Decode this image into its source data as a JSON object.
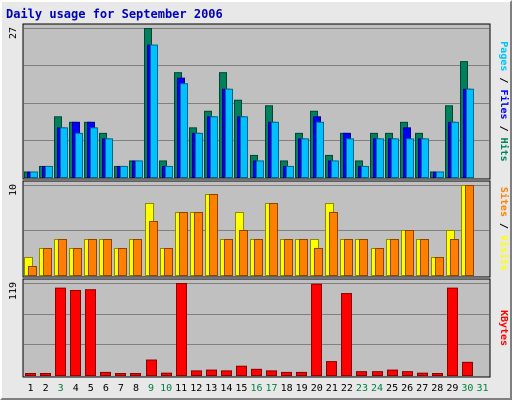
{
  "chart_data": {
    "type": "bar",
    "title": "Daily usage for September 2006",
    "categories": [
      "1",
      "2",
      "3",
      "4",
      "5",
      "6",
      "7",
      "8",
      "9",
      "10",
      "11",
      "12",
      "13",
      "14",
      "15",
      "16",
      "17",
      "18",
      "19",
      "20",
      "21",
      "22",
      "23",
      "24",
      "25",
      "26",
      "27",
      "28",
      "29",
      "30",
      "31"
    ],
    "weekend_days": [
      "3",
      "9",
      "10",
      "16",
      "17",
      "23",
      "24",
      "30",
      "31"
    ],
    "grid": true,
    "panels": [
      {
        "name": "hits-files-pages",
        "max_label": "27",
        "ylim": [
          0,
          27
        ],
        "side_labels": [
          "Pages",
          "Files",
          "Hits"
        ],
        "series": [
          {
            "name": "Hits",
            "color": "#00805c",
            "values": [
              1,
              2,
              11,
              10,
              10,
              8,
              2,
              3,
              27,
              3,
              19,
              9,
              12,
              19,
              14,
              4,
              13,
              3,
              8,
              12,
              4,
              8,
              3,
              8,
              8,
              10,
              8,
              1,
              13,
              21,
              0
            ]
          },
          {
            "name": "Files",
            "color": "#0000ff",
            "values": [
              1,
              2,
              9,
              10,
              10,
              7,
              2,
              3,
              24,
              2,
              18,
              8,
              11,
              16,
              11,
              3,
              10,
              2,
              7,
              11,
              3,
              8,
              2,
              7,
              7,
              9,
              7,
              1,
              10,
              16,
              0
            ]
          },
          {
            "name": "Pages",
            "color": "#00c0ff",
            "values": [
              1,
              2,
              9,
              8,
              9,
              7,
              2,
              3,
              24,
              2,
              17,
              8,
              11,
              16,
              11,
              3,
              10,
              2,
              7,
              10,
              3,
              7,
              2,
              7,
              7,
              7,
              7,
              1,
              10,
              16,
              0
            ]
          }
        ]
      },
      {
        "name": "visits-sites",
        "max_label": "10",
        "ylim": [
          0,
          10
        ],
        "side_labels": [
          "Sites",
          "Visits"
        ],
        "series": [
          {
            "name": "Visits",
            "color": "#ffff00",
            "values": [
              2,
              3,
              4,
              3,
              4,
              4,
              3,
              4,
              8,
              3,
              7,
              7,
              9,
              4,
              7,
              4,
              8,
              4,
              4,
              4,
              8,
              4,
              4,
              3,
              4,
              5,
              4,
              2,
              5,
              10,
              0
            ]
          },
          {
            "name": "Sites",
            "color": "#ff8000",
            "values": [
              1,
              3,
              4,
              3,
              4,
              4,
              3,
              4,
              6,
              3,
              7,
              7,
              9,
              4,
              5,
              4,
              8,
              4,
              4,
              3,
              7,
              4,
              4,
              3,
              4,
              5,
              4,
              2,
              4,
              10,
              0
            ]
          }
        ]
      },
      {
        "name": "kbytes",
        "max_label": "119",
        "ylim": [
          0,
          119
        ],
        "side_labels": [
          "KBytes"
        ],
        "series": [
          {
            "name": "KBytes",
            "color": "#ff0000",
            "values": [
              1,
              1,
              113,
              110,
              111,
              4,
              2,
              2,
              20,
              3,
              119,
              6,
              7,
              6,
              12,
              8,
              6,
              4,
              4,
              118,
              18,
              106,
              5,
              5,
              7,
              5,
              3,
              1,
              113,
              17,
              0
            ]
          }
        ]
      }
    ]
  }
}
